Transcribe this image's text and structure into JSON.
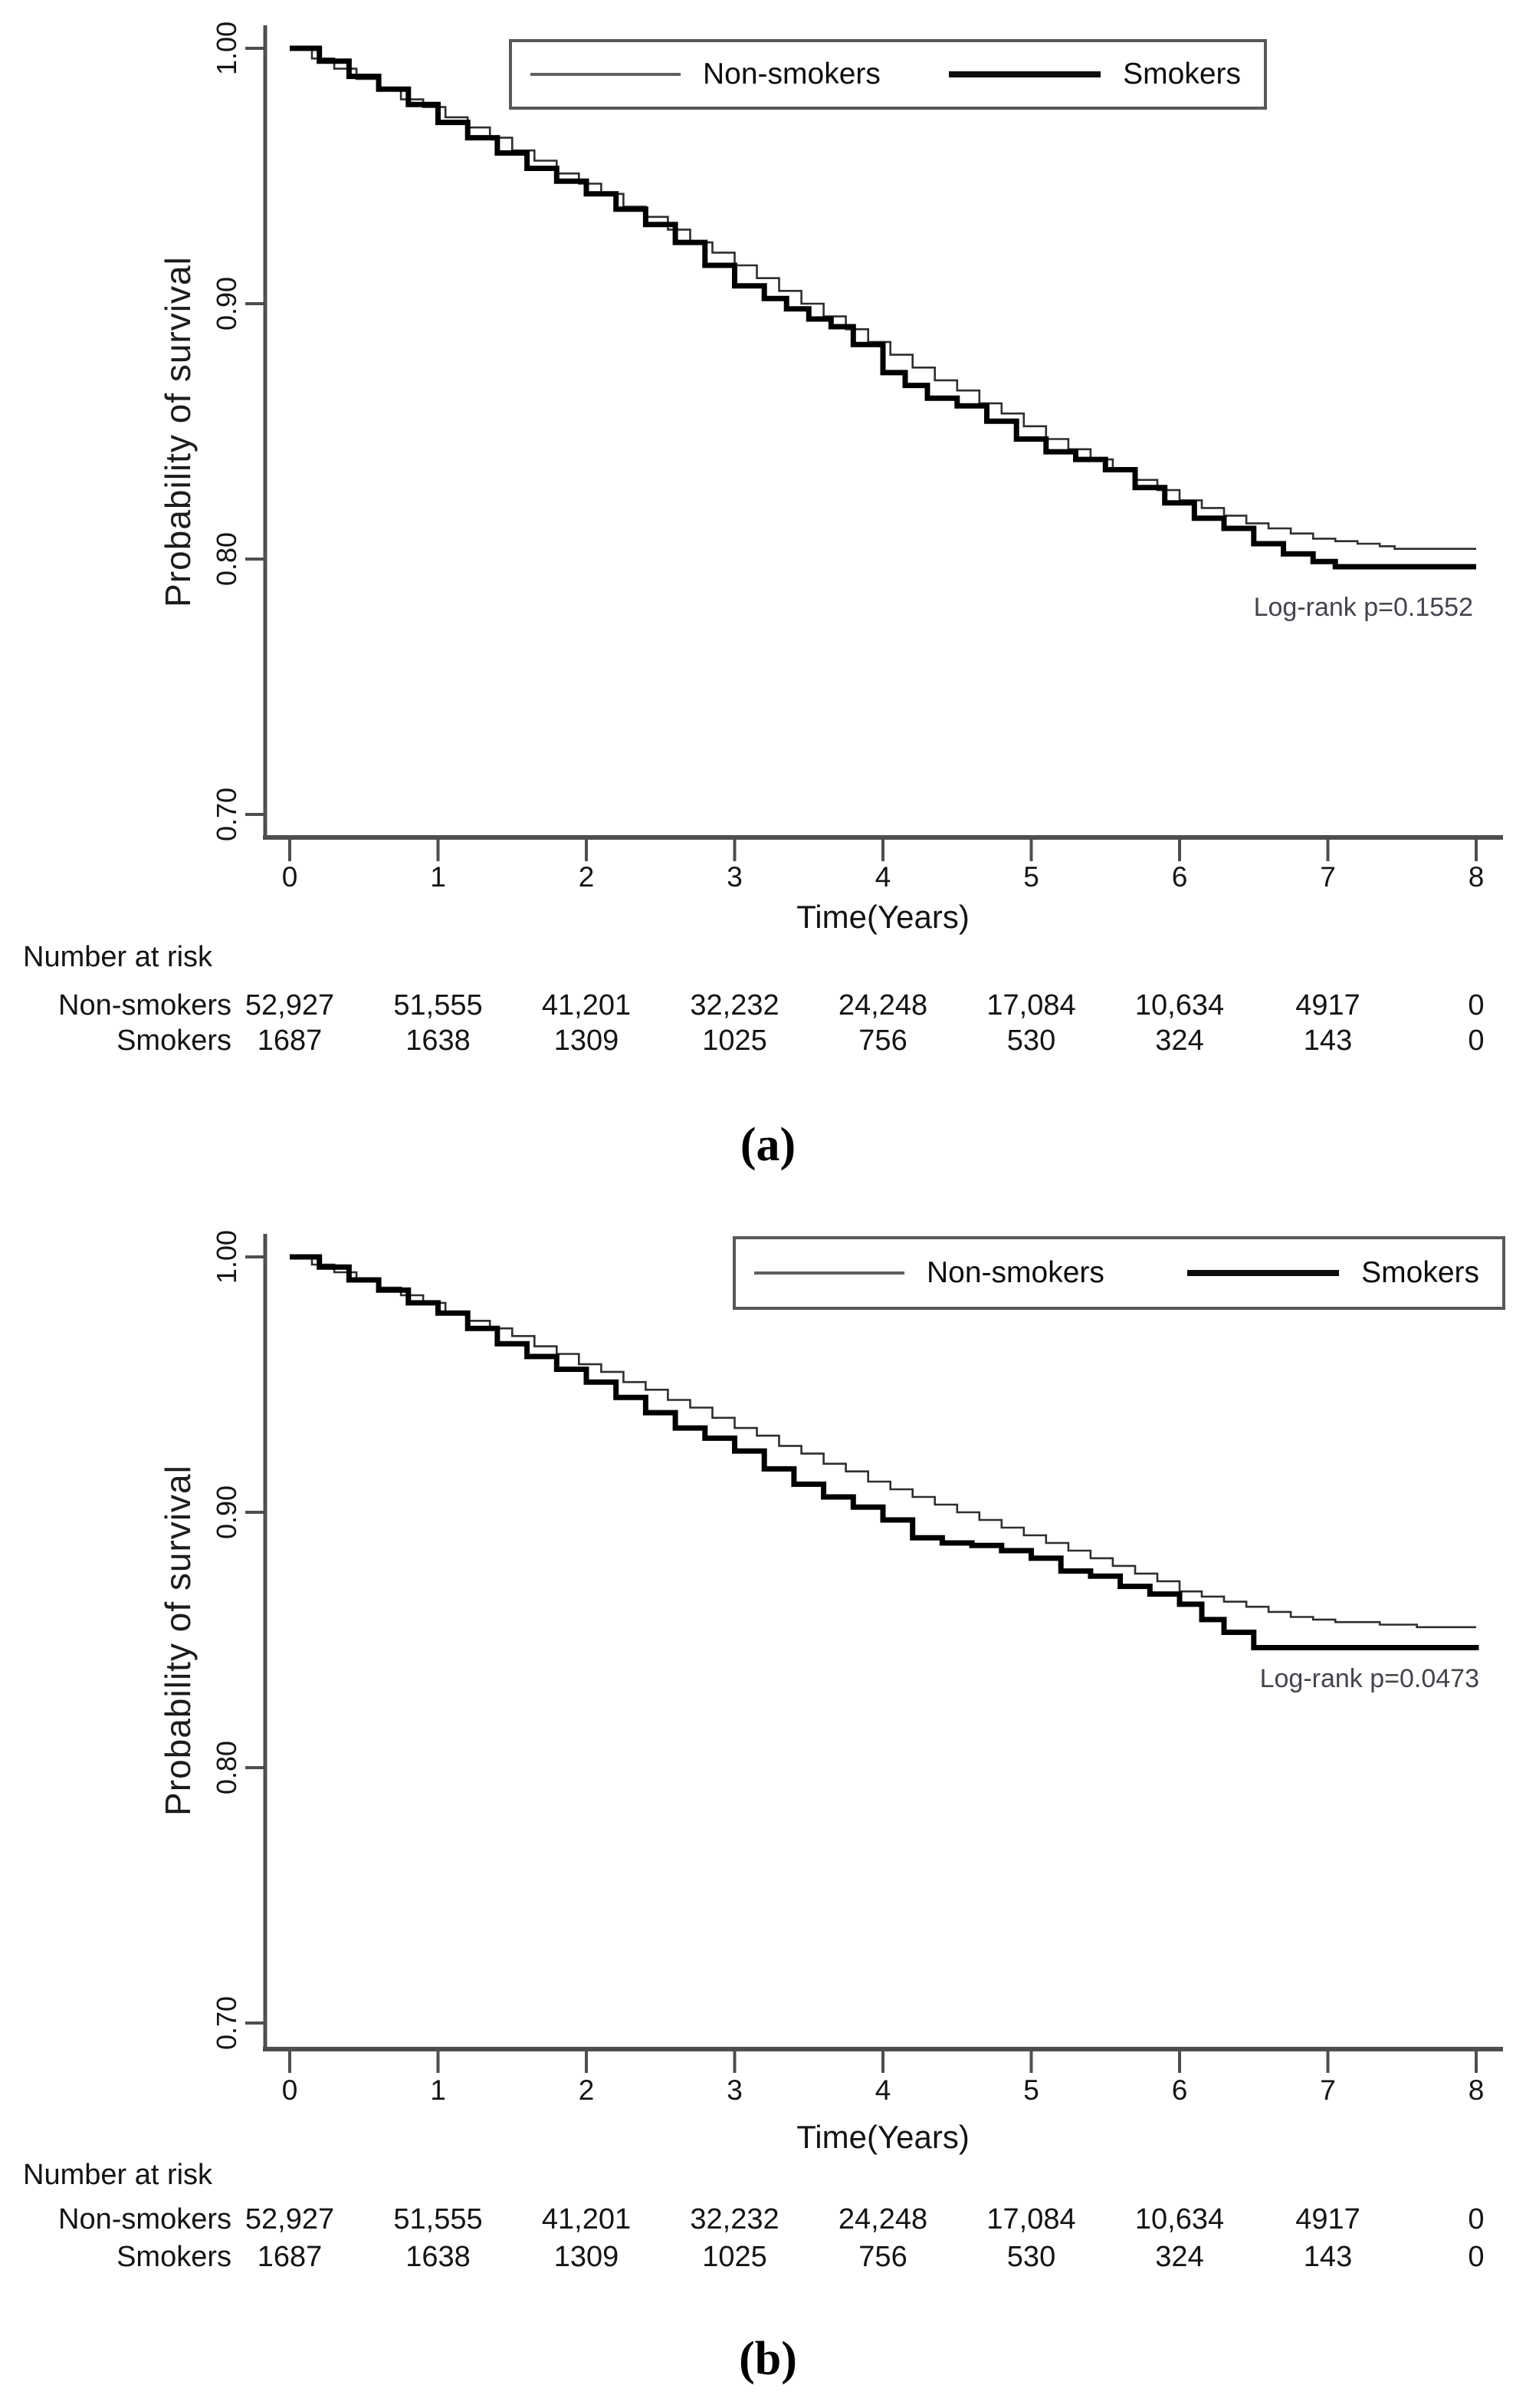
{
  "page": {
    "background": "#ffffff",
    "text_color": "#111111",
    "axis_color": "#4e4e4e"
  },
  "chart_data": [
    {
      "type": "line",
      "subtype": "kaplan-meier-step",
      "caption": "(a)",
      "xlabel": "Time(Years)",
      "ylabel": "Probability of survival",
      "xlim": [
        0,
        8
      ],
      "ylim": [
        0.7,
        1.0
      ],
      "grid": false,
      "legend_position": "top",
      "xticks": [
        "0",
        "1",
        "2",
        "3",
        "4",
        "5",
        "6",
        "7",
        "8"
      ],
      "ytick_labels": [
        "1.00",
        "0.90",
        "0.80",
        "0.70"
      ],
      "ytick_values": [
        1.0,
        0.9,
        0.8,
        0.7
      ],
      "annotation": "Log-rank p=0.1552",
      "series": [
        {
          "name": "Non-smokers",
          "line": "thin",
          "color": "#2e2e2e",
          "points": [
            [
              0,
              1.0
            ],
            [
              0.15,
              0.996
            ],
            [
              0.3,
              0.992
            ],
            [
              0.45,
              0.988
            ],
            [
              0.6,
              0.984
            ],
            [
              0.75,
              0.98
            ],
            [
              0.9,
              0.977
            ],
            [
              1.05,
              0.973
            ],
            [
              1.2,
              0.969
            ],
            [
              1.35,
              0.965
            ],
            [
              1.5,
              0.96
            ],
            [
              1.65,
              0.956
            ],
            [
              1.8,
              0.951
            ],
            [
              1.95,
              0.947
            ],
            [
              2.1,
              0.943
            ],
            [
              2.25,
              0.938
            ],
            [
              2.4,
              0.934
            ],
            [
              2.55,
              0.929
            ],
            [
              2.7,
              0.924
            ],
            [
              2.85,
              0.92
            ],
            [
              3.0,
              0.915
            ],
            [
              3.15,
              0.91
            ],
            [
              3.3,
              0.905
            ],
            [
              3.45,
              0.9
            ],
            [
              3.6,
              0.895
            ],
            [
              3.75,
              0.89
            ],
            [
              3.9,
              0.885
            ],
            [
              4.05,
              0.88
            ],
            [
              4.2,
              0.875
            ],
            [
              4.35,
              0.87
            ],
            [
              4.5,
              0.866
            ],
            [
              4.65,
              0.861
            ],
            [
              4.8,
              0.857
            ],
            [
              4.95,
              0.852
            ],
            [
              5.1,
              0.847
            ],
            [
              5.25,
              0.843
            ],
            [
              5.4,
              0.839
            ],
            [
              5.55,
              0.835
            ],
            [
              5.7,
              0.831
            ],
            [
              5.85,
              0.827
            ],
            [
              6.0,
              0.823
            ],
            [
              6.15,
              0.82
            ],
            [
              6.3,
              0.817
            ],
            [
              6.45,
              0.814
            ],
            [
              6.6,
              0.812
            ],
            [
              6.75,
              0.81
            ],
            [
              6.9,
              0.808
            ],
            [
              7.05,
              0.807
            ],
            [
              7.2,
              0.806
            ],
            [
              7.35,
              0.805
            ],
            [
              7.45,
              0.804
            ],
            [
              8,
              0.804
            ]
          ]
        },
        {
          "name": "Smokers",
          "line": "thick",
          "color": "#000000",
          "points": [
            [
              0,
              1.0
            ],
            [
              0.2,
              0.995
            ],
            [
              0.4,
              0.989
            ],
            [
              0.6,
              0.984
            ],
            [
              0.8,
              0.978
            ],
            [
              1.0,
              0.971
            ],
            [
              1.2,
              0.965
            ],
            [
              1.4,
              0.959
            ],
            [
              1.6,
              0.953
            ],
            [
              1.8,
              0.948
            ],
            [
              2.0,
              0.943
            ],
            [
              2.2,
              0.937
            ],
            [
              2.4,
              0.931
            ],
            [
              2.6,
              0.924
            ],
            [
              2.8,
              0.915
            ],
            [
              3.0,
              0.907
            ],
            [
              3.2,
              0.902
            ],
            [
              3.35,
              0.898
            ],
            [
              3.5,
              0.894
            ],
            [
              3.65,
              0.891
            ],
            [
              3.8,
              0.884
            ],
            [
              4.0,
              0.873
            ],
            [
              4.15,
              0.868
            ],
            [
              4.3,
              0.863
            ],
            [
              4.5,
              0.86
            ],
            [
              4.7,
              0.854
            ],
            [
              4.9,
              0.847
            ],
            [
              5.1,
              0.842
            ],
            [
              5.3,
              0.839
            ],
            [
              5.5,
              0.835
            ],
            [
              5.7,
              0.828
            ],
            [
              5.9,
              0.822
            ],
            [
              6.1,
              0.816
            ],
            [
              6.3,
              0.812
            ],
            [
              6.5,
              0.806
            ],
            [
              6.7,
              0.802
            ],
            [
              6.9,
              0.799
            ],
            [
              7.05,
              0.797
            ],
            [
              8,
              0.797
            ]
          ]
        }
      ],
      "number_at_risk": {
        "title": "Number at risk",
        "times": [
          0,
          1,
          2,
          3,
          4,
          5,
          6,
          7,
          8
        ],
        "rows": [
          {
            "label": "Non-smokers",
            "values": [
              "52,927",
              "51,555",
              "41,201",
              "32,232",
              "24,248",
              "17,084",
              "10,634",
              "4917",
              "0"
            ]
          },
          {
            "label": "Smokers",
            "values": [
              "1687",
              "1638",
              "1309",
              "1025",
              "756",
              "530",
              "324",
              "143",
              "0"
            ]
          }
        ]
      }
    },
    {
      "type": "line",
      "subtype": "kaplan-meier-step",
      "caption": "(b)",
      "xlabel": "Time(Years)",
      "ylabel": "Probability of survival",
      "xlim": [
        0,
        8
      ],
      "ylim": [
        0.7,
        1.0
      ],
      "grid": false,
      "legend_position": "top-right",
      "xticks": [
        "0",
        "1",
        "2",
        "3",
        "4",
        "5",
        "6",
        "7",
        "8"
      ],
      "ytick_labels": [
        "1.00",
        "0.90",
        "0.80",
        "0.70"
      ],
      "ytick_values": [
        1.0,
        0.9,
        0.8,
        0.7
      ],
      "annotation": "Log-rank p=0.0473",
      "series": [
        {
          "name": "Non-smokers",
          "line": "thin",
          "color": "#2e2e2e",
          "points": [
            [
              0,
              1.0
            ],
            [
              0.15,
              0.997
            ],
            [
              0.3,
              0.994
            ],
            [
              0.45,
              0.991
            ],
            [
              0.6,
              0.988
            ],
            [
              0.75,
              0.985
            ],
            [
              0.9,
              0.982
            ],
            [
              1.05,
              0.978
            ],
            [
              1.2,
              0.975
            ],
            [
              1.35,
              0.972
            ],
            [
              1.5,
              0.969
            ],
            [
              1.65,
              0.965
            ],
            [
              1.8,
              0.962
            ],
            [
              1.95,
              0.958
            ],
            [
              2.1,
              0.955
            ],
            [
              2.25,
              0.951
            ],
            [
              2.4,
              0.948
            ],
            [
              2.55,
              0.944
            ],
            [
              2.7,
              0.941
            ],
            [
              2.85,
              0.937
            ],
            [
              3.0,
              0.933
            ],
            [
              3.15,
              0.93
            ],
            [
              3.3,
              0.926
            ],
            [
              3.45,
              0.923
            ],
            [
              3.6,
              0.919
            ],
            [
              3.75,
              0.916
            ],
            [
              3.9,
              0.912
            ],
            [
              4.05,
              0.909
            ],
            [
              4.2,
              0.906
            ],
            [
              4.35,
              0.903
            ],
            [
              4.5,
              0.9
            ],
            [
              4.65,
              0.897
            ],
            [
              4.8,
              0.894
            ],
            [
              4.95,
              0.891
            ],
            [
              5.1,
              0.888
            ],
            [
              5.25,
              0.885
            ],
            [
              5.4,
              0.882
            ],
            [
              5.55,
              0.879
            ],
            [
              5.7,
              0.876
            ],
            [
              5.85,
              0.873
            ],
            [
              6.0,
              0.869
            ],
            [
              6.15,
              0.867
            ],
            [
              6.3,
              0.865
            ],
            [
              6.45,
              0.863
            ],
            [
              6.6,
              0.861
            ],
            [
              6.75,
              0.859
            ],
            [
              6.9,
              0.858
            ],
            [
              7.05,
              0.857
            ],
            [
              7.35,
              0.856
            ],
            [
              7.6,
              0.855
            ],
            [
              8,
              0.855
            ]
          ]
        },
        {
          "name": "Smokers",
          "line": "thick",
          "color": "#000000",
          "points": [
            [
              0,
              1.0
            ],
            [
              0.2,
              0.996
            ],
            [
              0.4,
              0.991
            ],
            [
              0.6,
              0.987
            ],
            [
              0.8,
              0.982
            ],
            [
              1.0,
              0.978
            ],
            [
              1.2,
              0.972
            ],
            [
              1.4,
              0.966
            ],
            [
              1.6,
              0.961
            ],
            [
              1.8,
              0.956
            ],
            [
              2.0,
              0.951
            ],
            [
              2.2,
              0.945
            ],
            [
              2.4,
              0.939
            ],
            [
              2.6,
              0.933
            ],
            [
              2.8,
              0.929
            ],
            [
              3.0,
              0.924
            ],
            [
              3.2,
              0.917
            ],
            [
              3.4,
              0.911
            ],
            [
              3.6,
              0.906
            ],
            [
              3.8,
              0.902
            ],
            [
              4.0,
              0.897
            ],
            [
              4.2,
              0.89
            ],
            [
              4.4,
              0.888
            ],
            [
              4.6,
              0.887
            ],
            [
              4.8,
              0.885
            ],
            [
              5.0,
              0.882
            ],
            [
              5.2,
              0.877
            ],
            [
              5.4,
              0.875
            ],
            [
              5.6,
              0.871
            ],
            [
              5.8,
              0.868
            ],
            [
              6.0,
              0.864
            ],
            [
              6.15,
              0.858
            ],
            [
              6.3,
              0.853
            ],
            [
              6.5,
              0.847
            ],
            [
              8,
              0.846
            ]
          ]
        }
      ],
      "number_at_risk": {
        "title": "Number at risk",
        "times": [
          0,
          1,
          2,
          3,
          4,
          5,
          6,
          7,
          8
        ],
        "rows": [
          {
            "label": "Non-smokers",
            "values": [
              "52,927",
              "51,555",
              "41,201",
              "32,232",
              "24,248",
              "17,084",
              "10,634",
              "4917",
              "0"
            ]
          },
          {
            "label": "Smokers",
            "values": [
              "1687",
              "1638",
              "1309",
              "1025",
              "756",
              "530",
              "324",
              "143",
              "0"
            ]
          }
        ]
      }
    }
  ]
}
